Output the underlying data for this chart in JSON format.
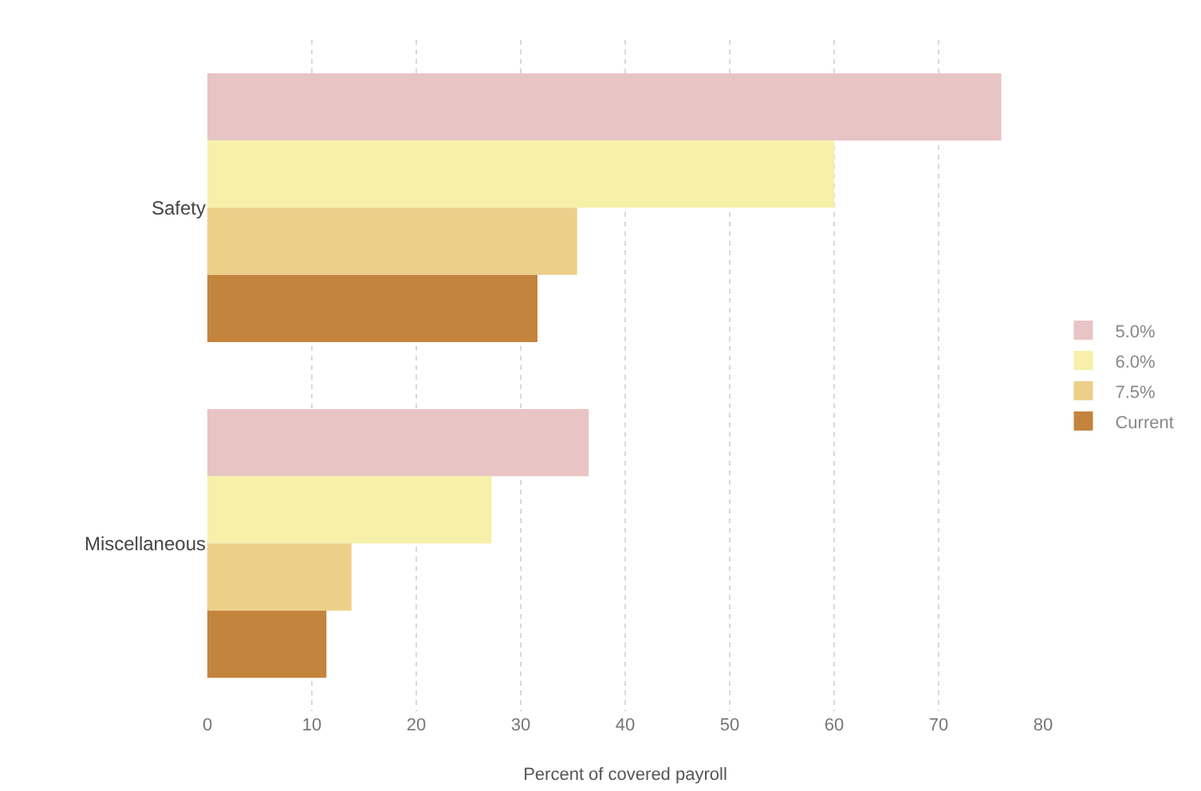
{
  "chart_data": {
    "type": "bar",
    "orientation": "horizontal",
    "xlabel": "Percent of covered payroll",
    "categories": [
      "Safety",
      "Miscellaneous"
    ],
    "series": [
      {
        "name": "5.0%",
        "color": "#e8c4c4",
        "values": [
          76,
          36.5
        ]
      },
      {
        "name": "6.0%",
        "color": "#f6f0a8",
        "values": [
          60,
          27.2
        ]
      },
      {
        "name": "7.5%",
        "color": "#ecd08a",
        "values": [
          35.4,
          13.8
        ]
      },
      {
        "name": "Current",
        "color": "#c4843e",
        "values": [
          31.6,
          11.4
        ]
      }
    ],
    "xlim": [
      0,
      80
    ],
    "xticks": [
      0,
      10,
      20,
      30,
      40,
      50,
      60,
      70,
      80
    ],
    "grid": "x",
    "legend": "right"
  }
}
